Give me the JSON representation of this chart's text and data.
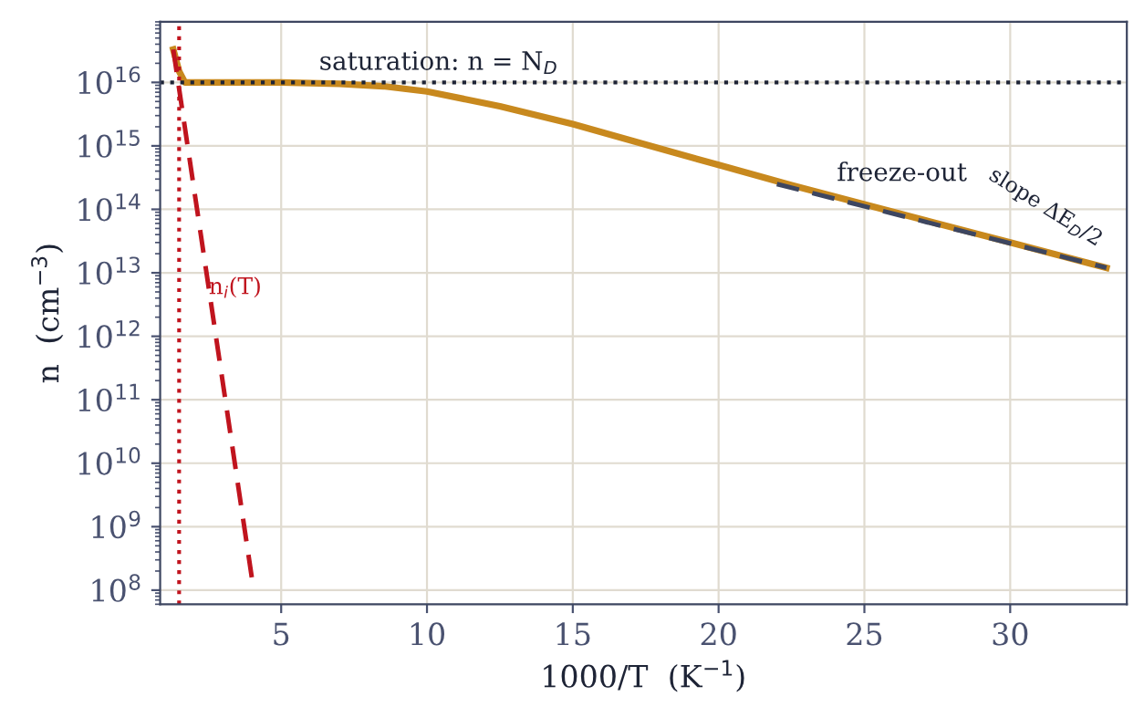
{
  "chart_data": {
    "type": "line",
    "xlabel": "1000/T  (K$^{−1}$)",
    "ylabel": "n  (cm$^{−3}$)",
    "log": "y",
    "xlim": [
      0.85,
      34
    ],
    "xticks": [
      5,
      10,
      15,
      20,
      25,
      30
    ],
    "ylim": [
      60000000.0,
      9e+16
    ],
    "yticks": [
      {
        "value": 100000000.0,
        "label": "10$^{8}$"
      },
      {
        "value": 1000000000.0,
        "label": "10$^{9}$"
      },
      {
        "value": 10000000000.0,
        "label": "10$^{10}$"
      },
      {
        "value": 100000000000.0,
        "label": "10$^{11}$"
      },
      {
        "value": 1000000000000.0,
        "label": "10$^{12}$"
      },
      {
        "value": 10000000000000.0,
        "label": "10$^{13}$"
      },
      {
        "value": 100000000000000.0,
        "label": "10$^{14}$"
      },
      {
        "value": 1000000000000000.0,
        "label": "10$^{15}$"
      },
      {
        "value": 1e+16,
        "label": "10$^{16}$"
      }
    ],
    "grid": true,
    "marker": "none",
    "series": [
      {
        "color": "#c8891e",
        "line_style": "solid",
        "x": [
          1.3,
          1.5,
          1.7,
          3,
          5,
          7,
          8.5,
          10,
          12.5,
          15,
          17.5,
          20,
          22.5,
          25,
          27.5,
          30,
          33.3
        ],
        "values": [
          3.3e+16,
          1.5e+16,
          1e+16,
          1e+16,
          1e+16,
          9500000000000000.0,
          8700000000000000.0,
          7200000000000000.0,
          4200000000000000.0,
          2200000000000000.0,
          1050000000000000.0,
          500000000000000.0,
          240000000000000.0,
          120000000000000.0,
          60000000000000.0,
          30000000000000.0,
          12000000000000.0
        ]
      },
      {
        "name": "n$_{i}$(T)",
        "color": "#c0141e",
        "line_style": "dashed",
        "x": [
          1.3,
          4.0
        ],
        "values": [
          3.3e+16,
          150000000.0
        ]
      },
      {
        "color": "#3d4660",
        "line_style": "dashed",
        "x": [
          22,
          33.3
        ],
        "values": [
          250000000000000.0,
          12000000000000.0
        ]
      }
    ],
    "ref_lines": [
      {
        "axis": "y",
        "value": 1e+16,
        "label": "saturation: n = N$_{D}$",
        "color": "#1e2436",
        "line_style": "dotted"
      },
      {
        "axis": "x",
        "value": 1.5,
        "color": "#c0141e",
        "line_style": "dotted"
      }
    ],
    "annotations": [
      "freeze-out",
      "slope ΔE$_{D}$/2"
    ]
  }
}
